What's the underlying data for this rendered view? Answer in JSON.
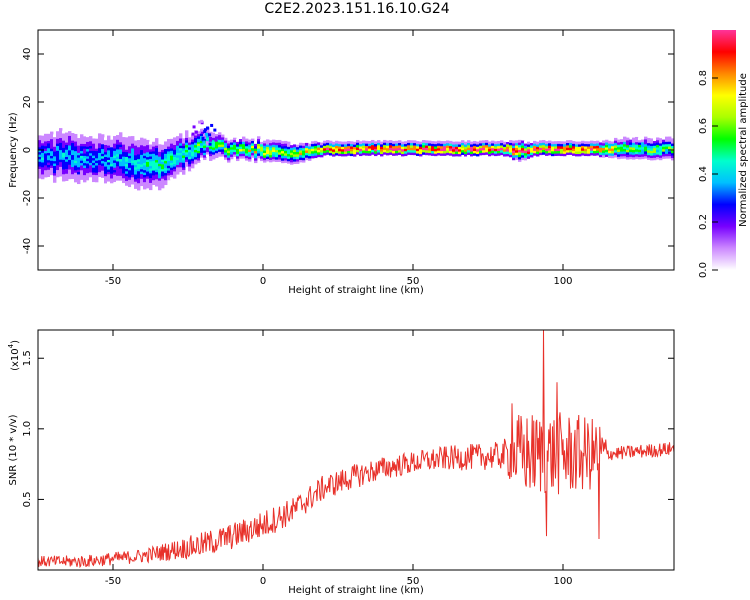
{
  "title": "C2E2.2023.151.16.10.G24",
  "chart_data": [
    {
      "type": "heatmap",
      "xlabel": "Height of straight line (km)",
      "ylabel": "Frequency (Hz)",
      "xlim": [
        -75,
        137
      ],
      "ylim": [
        -50,
        50
      ],
      "xticks": [
        -50,
        0,
        50,
        100
      ],
      "yticks": [
        -40,
        -20,
        0,
        20,
        40
      ],
      "colorbar": {
        "label": "Normalized spectral amplitude",
        "range": [
          0.0,
          1.0
        ],
        "ticks": [
          "0.0",
          "0.2",
          "0.4",
          "0.6",
          "0.8"
        ],
        "colors": [
          "#ffffff",
          "#cc88ff",
          "#7700ff",
          "#0000ff",
          "#00bfff",
          "#00ffcc",
          "#00ff00",
          "#aaff00",
          "#ffff00",
          "#ff8800",
          "#ff0000",
          "#ff3399"
        ]
      },
      "ridge": {
        "x": [
          -75,
          -65,
          -55,
          -45,
          -35,
          -28,
          -22,
          -18,
          -12,
          -5,
          0,
          5,
          10,
          20,
          40,
          60,
          80,
          85,
          90,
          100,
          110,
          120,
          137
        ],
        "center": [
          -3,
          -3,
          -4,
          -5,
          -6,
          -2,
          1,
          2,
          0,
          0,
          -1,
          -1,
          -2,
          0,
          0,
          0,
          0,
          -1,
          0,
          0,
          0,
          0,
          0
        ],
        "halfwidth": [
          7,
          8,
          7,
          8,
          7,
          6,
          5,
          4,
          3,
          3,
          3,
          3,
          3,
          2,
          2,
          2,
          2,
          3,
          2,
          2,
          2,
          3,
          3
        ],
        "peak": [
          0.35,
          0.35,
          0.35,
          0.4,
          0.45,
          0.45,
          0.5,
          0.5,
          0.55,
          0.65,
          0.7,
          0.6,
          0.6,
          0.9,
          0.95,
          0.95,
          0.95,
          0.85,
          0.95,
          0.9,
          0.9,
          0.55,
          0.55
        ]
      }
    },
    {
      "type": "line",
      "xlabel": "Height of straight line (km)",
      "ylabel": "SNR (10 * v/v)",
      "yscale_label": "(x10",
      "yscale_exp": "4",
      "yscale_close": ")",
      "xlim": [
        -75,
        137
      ],
      "ylim": [
        0,
        1.7
      ],
      "xticks": [
        -50,
        0,
        50,
        100
      ],
      "yticks": [
        0.5,
        1.0,
        1.5
      ],
      "ytick_labels": [
        "0.5",
        "1.0",
        "1.5"
      ],
      "series": [
        {
          "color": "#e8312a",
          "trend_x": [
            -75,
            -60,
            -50,
            -40,
            -30,
            -20,
            -10,
            0,
            10,
            15,
            20,
            30,
            40,
            50,
            60,
            70,
            80,
            90,
            100,
            110,
            120,
            137
          ],
          "trend_y": [
            0.06,
            0.06,
            0.08,
            0.1,
            0.14,
            0.18,
            0.24,
            0.32,
            0.42,
            0.5,
            0.58,
            0.66,
            0.72,
            0.76,
            0.79,
            0.8,
            0.81,
            0.82,
            0.82,
            0.82,
            0.83,
            0.86
          ],
          "noise_x": [
            -75,
            -40,
            -20,
            0,
            20,
            50,
            80,
            85,
            100,
            113,
            115,
            137
          ],
          "noise_amp": [
            0.04,
            0.05,
            0.09,
            0.1,
            0.09,
            0.08,
            0.1,
            0.3,
            0.3,
            0.25,
            0.05,
            0.05
          ],
          "spikes": [
            {
              "x": 83,
              "y": 1.18
            },
            {
              "x": 93.5,
              "y": 1.7
            },
            {
              "x": 94.5,
              "y": 0.24
            },
            {
              "x": 98,
              "y": 1.33
            },
            {
              "x": 112,
              "y": 0.22
            }
          ]
        }
      ]
    }
  ]
}
